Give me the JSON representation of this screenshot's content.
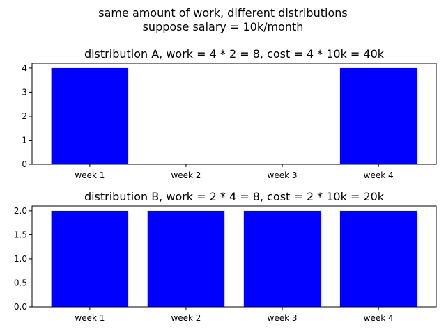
{
  "figure": {
    "suptitle_line1": "same amount of work, different distributions",
    "suptitle_line2": "suppose salary = 10k/month"
  },
  "chart_data": [
    {
      "type": "bar",
      "title": "distribution A, work = 4 * 2 = 8, cost = 4 * 10k = 40k",
      "categories": [
        "week 1",
        "week 2",
        "week 3",
        "week 4"
      ],
      "values": [
        4,
        0,
        0,
        4
      ],
      "ylim": [
        0,
        4.2
      ],
      "yticks": [
        0,
        1,
        2,
        3,
        4
      ],
      "ytick_labels": [
        "0",
        "1",
        "2",
        "3",
        "4"
      ],
      "bar_color": "#0000ff",
      "xlabel": "",
      "ylabel": "",
      "grid": false
    },
    {
      "type": "bar",
      "title": "distribution B, work = 2 * 4 = 8, cost = 2 * 10k = 20k",
      "categories": [
        "week 1",
        "week 2",
        "week 3",
        "week 4"
      ],
      "values": [
        2,
        2,
        2,
        2
      ],
      "ylim": [
        0,
        2.1
      ],
      "yticks": [
        0,
        0.5,
        1,
        1.5,
        2
      ],
      "ytick_labels": [
        "0.0",
        "0.5",
        "1.0",
        "1.5",
        "2.0"
      ],
      "bar_color": "#0000ff",
      "xlabel": "",
      "ylabel": "",
      "grid": false
    }
  ]
}
